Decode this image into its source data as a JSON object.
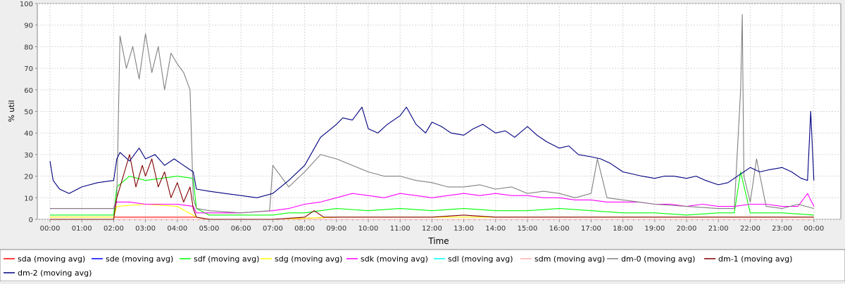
{
  "chart_data": {
    "type": "line",
    "title": "",
    "xlabel": "Time",
    "ylabel": "% util",
    "ylim": [
      0,
      100
    ],
    "yticks": [
      0,
      10,
      20,
      30,
      40,
      50,
      60,
      70,
      80,
      90,
      100
    ],
    "xlim": [
      0,
      24.15
    ],
    "xticks": [
      "00:00",
      "01:00",
      "02:00",
      "03:00",
      "04:00",
      "05:00",
      "06:00",
      "07:00",
      "08:00",
      "09:00",
      "10:00",
      "11:00",
      "12:00",
      "13:00",
      "14:00",
      "15:00",
      "16:00",
      "17:00",
      "18:00",
      "19:00",
      "20:00",
      "21:00",
      "22:00",
      "23:00",
      "00:00"
    ],
    "grid": true,
    "legend_position": "bottom",
    "series": [
      {
        "name": "sda (moving avg)",
        "color": "#ff0000",
        "x": [
          0,
          2,
          2.1,
          3,
          4,
          4.6,
          5,
          7,
          9,
          12,
          15,
          18,
          21,
          24
        ],
        "y": [
          1,
          1,
          1,
          1,
          1,
          1,
          0,
          0,
          1,
          1,
          1,
          1,
          1,
          1
        ]
      },
      {
        "name": "sde (moving avg)",
        "color": "#0000ff",
        "x": [
          0,
          4,
          7,
          9,
          12,
          15,
          18,
          21,
          24
        ],
        "y": [
          0,
          0,
          0,
          0,
          0,
          0,
          0,
          0,
          0
        ]
      },
      {
        "name": "sdf (moving avg)",
        "color": "#00ff00",
        "x": [
          0,
          1,
          2,
          2.1,
          2.5,
          3,
          3.5,
          4,
          4.5,
          4.6,
          5,
          6,
          7,
          7.5,
          8,
          9,
          10,
          11,
          12,
          13,
          14,
          15,
          16,
          17,
          18,
          19,
          20,
          21,
          21.5,
          21.7,
          22,
          23,
          24
        ],
        "y": [
          2,
          2,
          2,
          15,
          20,
          18,
          19,
          20,
          19,
          5,
          2,
          2,
          2,
          3,
          3,
          5,
          4,
          5,
          4,
          5,
          4,
          4,
          5,
          4,
          3,
          3,
          2,
          3,
          3,
          22,
          3,
          3,
          2
        ]
      },
      {
        "name": "sdg (moving avg)",
        "color": "#ffff00",
        "x": [
          0,
          2,
          2.1,
          3,
          4,
          4.6,
          5,
          7,
          9,
          12,
          15,
          18,
          21,
          24
        ],
        "y": [
          1,
          1,
          6,
          7,
          6,
          1,
          0,
          0,
          1,
          1,
          1,
          1,
          1,
          1
        ]
      },
      {
        "name": "sdk (moving avg)",
        "color": "#ff00ff",
        "x": [
          0,
          1,
          2,
          2.1,
          2.5,
          3,
          3.5,
          4,
          4.5,
          4.6,
          5,
          6,
          7,
          7.5,
          8,
          8.5,
          9,
          9.5,
          10,
          10.5,
          11,
          11.5,
          12,
          12.5,
          13,
          13.5,
          14,
          14.5,
          15,
          15.5,
          16,
          16.5,
          17,
          17.5,
          18,
          18.5,
          19,
          19.5,
          20,
          20.5,
          21,
          21.5,
          22,
          22.5,
          23,
          23.5,
          23.8,
          24
        ],
        "y": [
          5,
          5,
          5,
          8,
          8,
          7,
          7,
          7,
          6,
          3,
          3,
          3,
          4,
          5,
          7,
          8,
          10,
          12,
          11,
          10,
          12,
          11,
          10,
          11,
          12,
          11,
          12,
          11,
          11,
          10,
          10,
          9,
          9,
          8,
          8,
          8,
          7,
          7,
          6,
          7,
          6,
          6,
          7,
          7,
          6,
          6,
          12,
          6
        ]
      },
      {
        "name": "sdl (moving avg)",
        "color": "#00ffff",
        "x": [
          0,
          4,
          7,
          9,
          12,
          15,
          18,
          21,
          24
        ],
        "y": [
          0,
          0,
          0,
          0,
          0,
          0,
          0,
          0,
          0
        ]
      },
      {
        "name": "sdm (moving avg)",
        "color": "#ffafaf",
        "x": [
          0,
          4,
          7,
          9,
          12,
          15,
          18,
          21,
          24
        ],
        "y": [
          0,
          0,
          0,
          0,
          0,
          0,
          0,
          0,
          0
        ]
      },
      {
        "name": "dm-0 (moving avg)",
        "color": "#808080",
        "x": [
          0,
          1,
          2,
          2.1,
          2.2,
          2.4,
          2.6,
          2.8,
          3,
          3.2,
          3.4,
          3.6,
          3.8,
          4,
          4.2,
          4.4,
          4.5,
          4.6,
          5,
          6,
          6.9,
          7,
          7.5,
          8,
          8.5,
          9,
          9.5,
          10,
          10.5,
          11,
          11.5,
          12,
          12.5,
          13,
          13.5,
          14,
          14.5,
          15,
          15.5,
          16,
          16.5,
          17,
          17.2,
          17.5,
          18,
          18.5,
          19,
          20,
          21,
          21.5,
          21.7,
          21.75,
          21.8,
          22,
          22.2,
          22.5,
          23,
          23.5,
          24
        ],
        "y": [
          5,
          5,
          5,
          10,
          85,
          70,
          80,
          65,
          86,
          68,
          80,
          60,
          77,
          72,
          68,
          60,
          10,
          5,
          4,
          3,
          4,
          25,
          15,
          22,
          30,
          28,
          25,
          22,
          20,
          20,
          18,
          17,
          15,
          15,
          16,
          14,
          15,
          12,
          13,
          12,
          10,
          12,
          28,
          10,
          9,
          8,
          7,
          6,
          5,
          5,
          60,
          95,
          20,
          8,
          28,
          6,
          5,
          7,
          5
        ]
      },
      {
        "name": "dm-1 (moving avg)",
        "color": "#800000",
        "x": [
          0,
          1,
          2,
          2.1,
          2.3,
          2.5,
          2.7,
          2.9,
          3,
          3.2,
          3.4,
          3.6,
          3.8,
          4,
          4.2,
          4.4,
          4.5,
          4.6,
          5,
          7,
          8,
          8.3,
          8.6,
          9,
          10,
          11,
          12,
          13,
          14,
          15,
          16,
          17,
          18,
          19,
          20,
          21,
          22,
          23,
          24
        ],
        "y": [
          0,
          0,
          0,
          10,
          20,
          30,
          15,
          25,
          20,
          28,
          15,
          22,
          10,
          17,
          8,
          15,
          5,
          1,
          0,
          0,
          1,
          4,
          1,
          1,
          1,
          1,
          1,
          2,
          1,
          1,
          1,
          1,
          1,
          1,
          1,
          1,
          1,
          1,
          1
        ]
      },
      {
        "name": "dm-2 (moving avg)",
        "color": "#000080",
        "x": [
          0,
          0.1,
          0.3,
          0.6,
          1,
          1.5,
          2,
          2.1,
          2.2,
          2.5,
          2.8,
          3,
          3.3,
          3.6,
          3.9,
          4.2,
          4.5,
          4.6,
          5,
          5.5,
          6,
          6.5,
          7,
          7.5,
          8,
          8.5,
          9,
          9.2,
          9.5,
          9.8,
          10,
          10.3,
          10.6,
          11,
          11.2,
          11.5,
          11.8,
          12,
          12.3,
          12.6,
          13,
          13.3,
          13.6,
          14,
          14.3,
          14.6,
          15,
          15.3,
          15.6,
          16,
          16.3,
          16.6,
          17,
          17.3,
          17.6,
          18,
          18.3,
          18.6,
          19,
          19.3,
          19.6,
          20,
          20.3,
          20.6,
          21,
          21.3,
          21.6,
          22,
          22.3,
          22.6,
          23,
          23.3,
          23.6,
          23.8,
          23.9,
          24
        ],
        "y": [
          27,
          18,
          14,
          12,
          15,
          17,
          18,
          28,
          31,
          27,
          33,
          28,
          30,
          25,
          28,
          25,
          22,
          14,
          13,
          12,
          11,
          10,
          12,
          18,
          25,
          38,
          44,
          47,
          46,
          52,
          42,
          40,
          44,
          48,
          52,
          44,
          40,
          45,
          43,
          40,
          39,
          42,
          44,
          40,
          41,
          38,
          43,
          39,
          36,
          33,
          34,
          30,
          29,
          28,
          26,
          22,
          21,
          20,
          19,
          20,
          20,
          19,
          20,
          18,
          16,
          17,
          20,
          24,
          22,
          23,
          24,
          22,
          19,
          18,
          50,
          18
        ]
      }
    ]
  }
}
